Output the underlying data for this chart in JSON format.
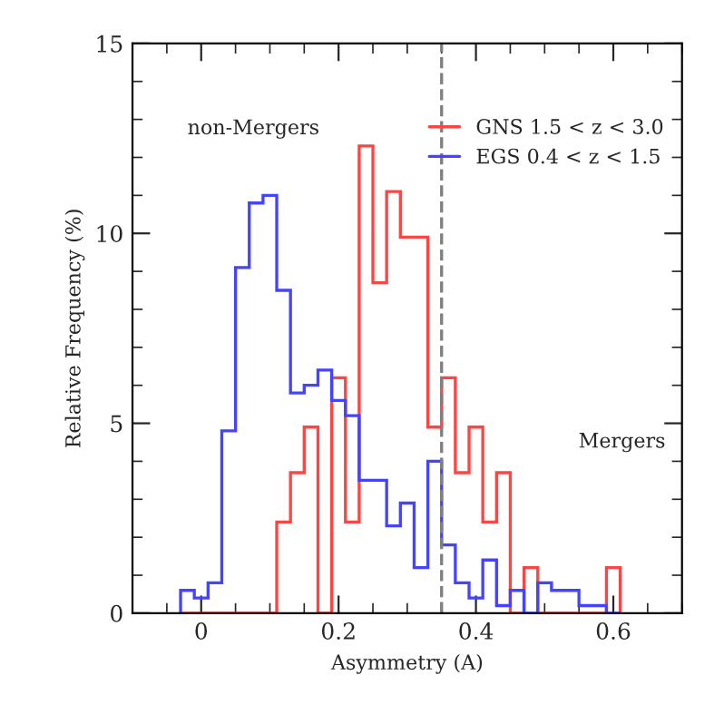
{
  "chart_data": {
    "type": "histogram",
    "xlabel": "Asymmetry (A)",
    "ylabel": "Relative Frequency (%)",
    "bins": [
      -0.03,
      -0.01,
      0.01,
      0.03,
      0.05,
      0.07,
      0.09,
      0.11,
      0.13,
      0.15,
      0.17,
      0.19,
      0.21,
      0.23,
      0.25,
      0.27,
      0.29,
      0.31,
      0.33,
      0.35,
      0.37,
      0.39,
      0.41,
      0.43,
      0.45,
      0.47,
      0.49,
      0.51,
      0.53,
      0.55,
      0.57,
      0.59,
      0.61
    ],
    "series": [
      {
        "name": "GNS 1.5 < z < 3.0",
        "color": "#ff4444",
        "values": [
          0,
          0,
          0,
          0,
          0,
          0,
          0,
          2.4,
          3.7,
          4.9,
          0,
          6.2,
          2.4,
          12.3,
          8.7,
          11.1,
          9.9,
          9.9,
          4.9,
          6.2,
          3.7,
          4.9,
          2.4,
          3.7,
          0,
          1.2,
          0,
          0,
          0,
          0,
          0,
          1.2
        ]
      },
      {
        "name": "EGS 0.4 < z < 1.5",
        "color": "#4444ff",
        "values": [
          0.6,
          0.4,
          0.8,
          4.8,
          9.1,
          10.8,
          11.0,
          8.5,
          5.8,
          6.0,
          6.4,
          5.6,
          5.2,
          3.5,
          3.5,
          2.3,
          2.9,
          1.2,
          4.0,
          1.8,
          0.8,
          0.4,
          1.4,
          0.2,
          0.6,
          0,
          0.8,
          0.6,
          0.6,
          0.2,
          0.2,
          0
        ]
      }
    ],
    "xlim": [
      -0.1,
      0.7
    ],
    "xticks": [
      0,
      0.2,
      0.4,
      0.6
    ],
    "ylim": [
      0,
      15
    ],
    "yticks": [
      0,
      5,
      10,
      15
    ],
    "ref_lines": [
      {
        "axis": "x",
        "value": 0.35,
        "color": "#808080",
        "line_style": "dashed"
      }
    ],
    "annotations": [
      "non-Mergers",
      "Mergers"
    ],
    "legend": "top right",
    "grid": false
  }
}
